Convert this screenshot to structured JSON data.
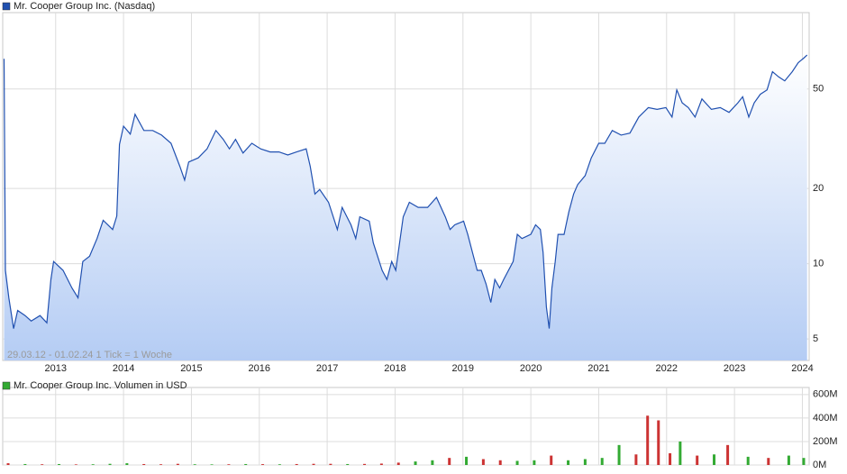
{
  "chart_data": [
    {
      "type": "line",
      "series": [
        {
          "name": "Mr. Cooper Group Inc. (Nasdaq)",
          "color": "#2050b0",
          "x": [
            2012.24,
            2012.26,
            2012.31,
            2012.38,
            2012.44,
            2012.55,
            2012.64,
            2012.77,
            2012.87,
            2012.93,
            2012.97,
            2013.11,
            2013.24,
            2013.33,
            2013.4,
            2013.5,
            2013.61,
            2013.7,
            2013.84,
            2013.9,
            2013.94,
            2014.0,
            2014.1,
            2014.17,
            2014.3,
            2014.43,
            2014.56,
            2014.7,
            2014.83,
            2014.9,
            2014.96,
            2015.1,
            2015.23,
            2015.36,
            2015.47,
            2015.56,
            2015.65,
            2015.76,
            2015.89,
            2016.02,
            2016.16,
            2016.29,
            2016.42,
            2016.55,
            2016.69,
            2016.75,
            2016.82,
            2016.89,
            2017.02,
            2017.15,
            2017.22,
            2017.35,
            2017.42,
            2017.48,
            2017.62,
            2017.68,
            2017.81,
            2017.88,
            2017.95,
            2018.01,
            2018.12,
            2018.21,
            2018.34,
            2018.48,
            2018.61,
            2018.74,
            2018.81,
            2018.88,
            2019.01,
            2019.07,
            2019.14,
            2019.21,
            2019.27,
            2019.34,
            2019.41,
            2019.47,
            2019.54,
            2019.6,
            2019.74,
            2019.8,
            2019.87,
            2020.0,
            2020.07,
            2020.14,
            2020.18,
            2020.23,
            2020.27,
            2020.31,
            2020.36,
            2020.4,
            2020.49,
            2020.56,
            2020.63,
            2020.69,
            2020.8,
            2020.89,
            2021.0,
            2021.09,
            2021.2,
            2021.33,
            2021.46,
            2021.59,
            2021.73,
            2021.86,
            2021.99,
            2022.08,
            2022.15,
            2022.23,
            2022.32,
            2022.42,
            2022.52,
            2022.66,
            2022.79,
            2022.92,
            2023.05,
            2023.12,
            2023.21,
            2023.29,
            2023.38,
            2023.48,
            2023.56,
            2023.65,
            2023.74,
            2023.85,
            2023.94,
            2024.02,
            2024.07
          ],
          "values": [
            66,
            9.4,
            7.3,
            5.5,
            6.5,
            6.2,
            5.9,
            6.2,
            5.8,
            8.65,
            10.2,
            9.4,
            8.0,
            7.3,
            10.2,
            10.7,
            12.6,
            14.9,
            13.7,
            15.5,
            30,
            35.5,
            33,
            39.6,
            34.1,
            34.1,
            32.7,
            30.3,
            24.5,
            21.6,
            25.5,
            26.5,
            28.8,
            34.1,
            31.4,
            28.8,
            31.4,
            27.7,
            30.3,
            28.8,
            28.0,
            28.0,
            27.2,
            28.0,
            28.8,
            24.5,
            19.0,
            19.8,
            17.6,
            13.7,
            16.8,
            14.3,
            12.6,
            15.4,
            14.8,
            12.1,
            9.4,
            8.65,
            10.2,
            9.4,
            15.4,
            17.6,
            16.8,
            16.8,
            18.4,
            15.4,
            13.7,
            14.3,
            14.8,
            13.1,
            11.1,
            9.4,
            9.4,
            8.3,
            7.0,
            8.65,
            8.0,
            8.65,
            10.2,
            13.1,
            12.6,
            13.1,
            14.3,
            13.7,
            11.1,
            6.7,
            5.5,
            8.0,
            10.2,
            13.1,
            13.1,
            16.1,
            19.0,
            20.7,
            22.5,
            26.5,
            30.3,
            30.3,
            34.1,
            32.7,
            33.3,
            38.6,
            42.1,
            41.4,
            42.1,
            38.6,
            49.6,
            44.0,
            42.1,
            38.6,
            45.6,
            41.4,
            42.1,
            40.3,
            44.0,
            46.5,
            38.6,
            44.0,
            47.6,
            49.6,
            58.6,
            55.9,
            53.9,
            58.6,
            63.7,
            66.4,
            68.3
          ]
        }
      ],
      "xlim": [
        2012.22,
        2024.1
      ],
      "xticks": [
        2013,
        2014,
        2015,
        2016,
        2017,
        2018,
        2019,
        2020,
        2021,
        2022,
        2023,
        2024
      ],
      "ylim": [
        4.1,
        101
      ],
      "yticks": [
        5,
        10,
        20,
        50
      ],
      "log_scale": true,
      "grid": true,
      "annotation": "29.03.12 - 01.02.24   1 Tick = 1 Woche"
    },
    {
      "type": "bar",
      "series": [
        {
          "name": "Mr. Cooper Group Inc. Volumen in USD",
          "color": "#33aa33",
          "x": [
            2012.3,
            2012.55,
            2012.8,
            2013.05,
            2013.3,
            2013.55,
            2013.8,
            2014.05,
            2014.3,
            2014.55,
            2014.8,
            2015.05,
            2015.3,
            2015.55,
            2015.8,
            2016.05,
            2016.3,
            2016.55,
            2016.8,
            2017.05,
            2017.3,
            2017.55,
            2017.8,
            2018.05,
            2018.3,
            2018.55,
            2018.8,
            2019.05,
            2019.3,
            2019.55,
            2019.8,
            2020.05,
            2020.3,
            2020.55,
            2020.8,
            2021.05,
            2021.3,
            2021.55,
            2021.72,
            2021.88,
            2022.05,
            2022.2,
            2022.45,
            2022.7,
            2022.9,
            2023.2,
            2023.5,
            2023.8,
            2024.02
          ],
          "values": [
            15000000,
            8000000,
            6000000,
            8000000,
            5000000,
            6000000,
            10000000,
            15000000,
            8000000,
            6000000,
            10000000,
            6000000,
            5000000,
            6000000,
            8000000,
            7000000,
            6000000,
            8000000,
            10000000,
            10000000,
            8000000,
            9000000,
            12000000,
            20000000,
            30000000,
            40000000,
            60000000,
            70000000,
            50000000,
            40000000,
            35000000,
            40000000,
            80000000,
            40000000,
            50000000,
            60000000,
            170000000,
            90000000,
            420000000,
            380000000,
            100000000,
            200000000,
            80000000,
            90000000,
            170000000,
            70000000,
            60000000,
            80000000,
            60000000
          ],
          "colors": [
            "#cc3333",
            "#33aa33",
            "#cc3333",
            "#33aa33",
            "#cc3333",
            "#33aa33",
            "#33aa33",
            "#33aa33",
            "#cc3333",
            "#cc3333",
            "#cc3333",
            "#33aa33",
            "#33aa33",
            "#cc3333",
            "#33aa33",
            "#cc3333",
            "#33aa33",
            "#cc3333",
            "#cc3333",
            "#cc3333",
            "#33aa33",
            "#cc3333",
            "#cc3333",
            "#cc3333",
            "#33aa33",
            "#33aa33",
            "#cc3333",
            "#33aa33",
            "#cc3333",
            "#cc3333",
            "#33aa33",
            "#33aa33",
            "#cc3333",
            "#33aa33",
            "#33aa33",
            "#33aa33",
            "#33aa33",
            "#cc3333",
            "#cc3333",
            "#cc3333",
            "#cc3333",
            "#33aa33",
            "#cc3333",
            "#33aa33",
            "#cc3333",
            "#33aa33",
            "#cc3333",
            "#33aa33",
            "#33aa33"
          ]
        }
      ],
      "xlim": [
        2012.22,
        2024.1
      ],
      "xticks": [
        2013,
        2014,
        2015,
        2016,
        2017,
        2018,
        2019,
        2020,
        2021,
        2022,
        2023,
        2024
      ],
      "ylim": [
        0,
        660000000
      ],
      "yticks": [
        {
          "value": 0,
          "label": "0M"
        },
        {
          "value": 200000000,
          "label": "200M"
        },
        {
          "value": 400000000,
          "label": "400M"
        },
        {
          "value": 600000000,
          "label": "600M"
        }
      ],
      "grid": true
    }
  ]
}
